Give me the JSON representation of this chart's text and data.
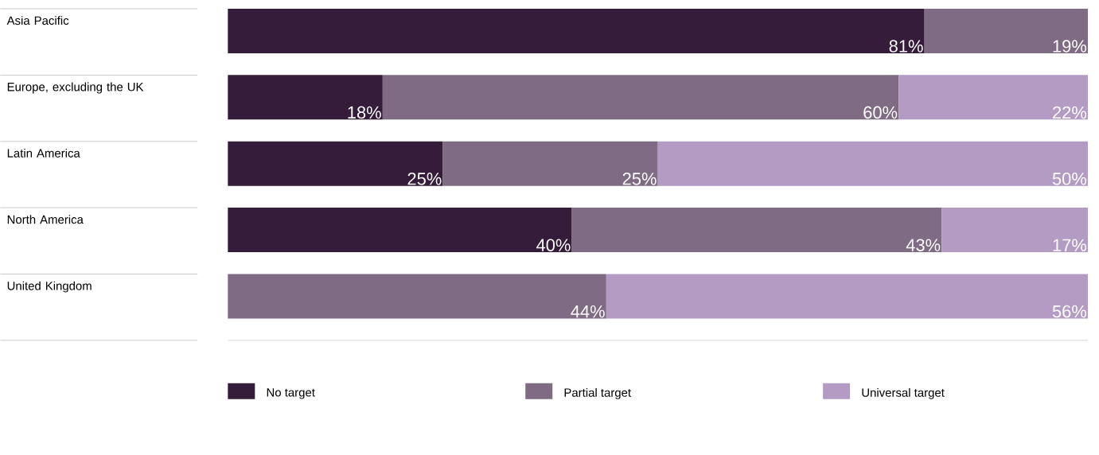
{
  "chart_data": {
    "type": "bar",
    "orientation": "horizontal",
    "stacked": true,
    "categories": [
      "Asia Pacific",
      "Europe, excluding the UK",
      "Latin America",
      "North America",
      "United Kingdom"
    ],
    "xlim": [
      0,
      100
    ],
    "tick_labels": "y",
    "legend": "bottom",
    "series": [
      {
        "name": "No target",
        "color": "#351c3a",
        "values": [
          81,
          18,
          25,
          40,
          null
        ],
        "value_labels": [
          "81%",
          "18%",
          "25%",
          "40%",
          null
        ]
      },
      {
        "name": "Partial target",
        "color": "#806b84",
        "values": [
          19,
          60,
          25,
          43,
          44
        ],
        "value_labels": [
          "19%",
          "60%",
          "25%",
          "43%",
          "44%"
        ]
      },
      {
        "name": "Universal target",
        "color": "#b39bc4",
        "values": [
          null,
          22,
          50,
          17,
          56
        ],
        "value_labels": [
          null,
          "22%",
          "50%",
          "17%",
          "56%"
        ]
      }
    ]
  }
}
